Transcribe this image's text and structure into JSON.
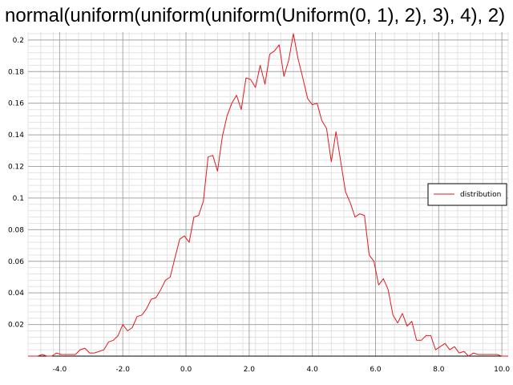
{
  "chart_data": {
    "type": "line",
    "title": "normal(uniform(uniform(uniform(Uniform(0, 1), 2), 3), 4), 2)",
    "xlabel": "",
    "ylabel": "",
    "xlim": [
      -5.0,
      10.2
    ],
    "ylim": [
      0,
      0.205
    ],
    "grid": true,
    "legend_position": "right",
    "x_ticks": [
      -4.0,
      -2.0,
      0.0,
      2.0,
      4.0,
      6.0,
      8.0,
      10.0
    ],
    "x_tick_labels": [
      "-4.0",
      "-2.0",
      "0.0",
      "2.0",
      "4.0",
      "6.0",
      "8.0",
      "10.0"
    ],
    "y_ticks": [
      0.02,
      0.04,
      0.06,
      0.08,
      0.1,
      0.12,
      0.14,
      0.16,
      0.18,
      0.2
    ],
    "y_tick_labels": [
      "0.02",
      "0.04",
      "0.06",
      "0.08",
      "0.1",
      "0.12",
      "0.14",
      "0.16",
      "0.18",
      "0.2"
    ],
    "series": [
      {
        "name": "distribution",
        "color": "#e31a1c",
        "x": [
          -5.0,
          -4.85,
          -4.7,
          -4.55,
          -4.4,
          -4.25,
          -4.1,
          -3.95,
          -3.8,
          -3.65,
          -3.5,
          -3.35,
          -3.2,
          -3.05,
          -2.9,
          -2.75,
          -2.6,
          -2.45,
          -2.3,
          -2.15,
          -2.0,
          -1.85,
          -1.7,
          -1.55,
          -1.4,
          -1.25,
          -1.1,
          -0.95,
          -0.8,
          -0.65,
          -0.5,
          -0.35,
          -0.2,
          -0.05,
          0.1,
          0.25,
          0.4,
          0.55,
          0.7,
          0.85,
          1.0,
          1.15,
          1.3,
          1.45,
          1.6,
          1.75,
          1.9,
          2.05,
          2.2,
          2.35,
          2.5,
          2.65,
          2.8,
          2.95,
          3.1,
          3.25,
          3.4,
          3.55,
          3.7,
          3.85,
          4.0,
          4.15,
          4.3,
          4.45,
          4.6,
          4.75,
          4.9,
          5.05,
          5.2,
          5.35,
          5.5,
          5.65,
          5.8,
          5.95,
          6.1,
          6.25,
          6.4,
          6.55,
          6.7,
          6.85,
          7.0,
          7.15,
          7.3,
          7.45,
          7.6,
          7.75,
          7.9,
          8.05,
          8.2,
          8.35,
          8.5,
          8.65,
          8.8,
          8.95,
          9.1,
          9.25,
          9.4,
          9.55,
          9.7,
          9.85,
          10.0,
          10.2
        ],
        "y": [
          0.0,
          0.0,
          0.0,
          0.001,
          0.0,
          0.0,
          0.002,
          0.001,
          0.001,
          0.001,
          0.001,
          0.004,
          0.005,
          0.002,
          0.002,
          0.003,
          0.004,
          0.009,
          0.01,
          0.013,
          0.02,
          0.016,
          0.018,
          0.025,
          0.026,
          0.03,
          0.036,
          0.037,
          0.042,
          0.048,
          0.05,
          0.062,
          0.074,
          0.076,
          0.072,
          0.088,
          0.089,
          0.098,
          0.126,
          0.127,
          0.117,
          0.139,
          0.152,
          0.16,
          0.165,
          0.156,
          0.176,
          0.175,
          0.17,
          0.184,
          0.172,
          0.191,
          0.193,
          0.197,
          0.177,
          0.187,
          0.204,
          0.188,
          0.176,
          0.163,
          0.159,
          0.16,
          0.149,
          0.144,
          0.123,
          0.142,
          0.123,
          0.104,
          0.097,
          0.088,
          0.09,
          0.089,
          0.064,
          0.06,
          0.045,
          0.049,
          0.042,
          0.026,
          0.021,
          0.027,
          0.019,
          0.022,
          0.01,
          0.01,
          0.013,
          0.013,
          0.004,
          0.006,
          0.008,
          0.004,
          0.006,
          0.002,
          0.003,
          0.0,
          0.002,
          0.001,
          0.001,
          0.001,
          0.001,
          0.001,
          0.0,
          0.0
        ]
      }
    ]
  }
}
